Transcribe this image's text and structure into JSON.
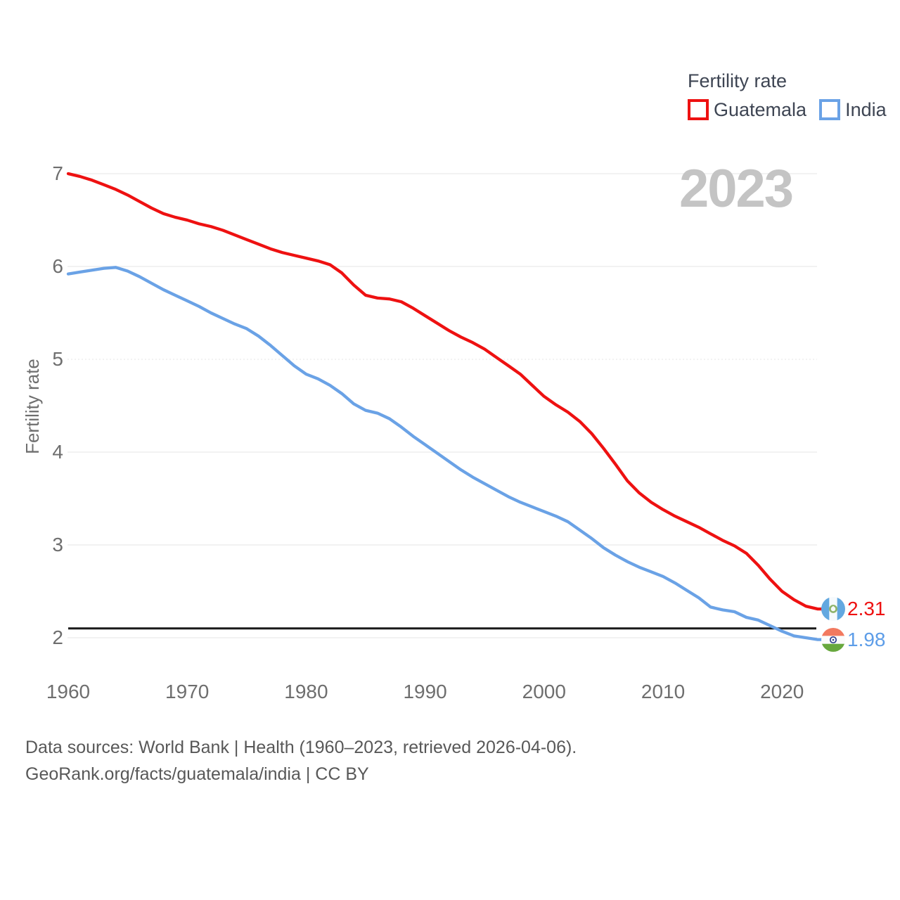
{
  "legend": {
    "title": "Fertility rate",
    "items": [
      {
        "label": "Guatemala",
        "color": "#ee1111"
      },
      {
        "label": "India",
        "color": "#6aa2e6"
      }
    ]
  },
  "watermark": "2023",
  "y_axis_title": "Fertility rate",
  "end_labels": [
    {
      "country": "Guatemala",
      "value": "2.31",
      "color": "#ee1111"
    },
    {
      "country": "India",
      "value": "1.98",
      "color": "#5d9de8"
    }
  ],
  "reference_line": {
    "value": 2.1,
    "color": "#1a1a1a"
  },
  "footer": {
    "line1": "Data sources: World Bank | Health (1960–2023, retrieved 2026-04-06).",
    "line2": "GeoRank.org/facts/guatemala/india | CC BY"
  },
  "chart_data": {
    "type": "line",
    "title": "Fertility rate",
    "xlabel": "",
    "ylabel": "Fertility rate",
    "xlim": [
      1960,
      2023
    ],
    "ylim": [
      1.9,
      7.1
    ],
    "x_ticks": [
      1960,
      1970,
      1980,
      1990,
      2000,
      2010,
      2020
    ],
    "y_ticks": [
      2,
      3,
      4,
      5,
      6,
      7
    ],
    "grid": true,
    "legend_position": "top-right",
    "annotations": [
      "2023 year watermark top-right",
      "black replacement-level line at 2.1"
    ],
    "x": [
      1960,
      1961,
      1962,
      1963,
      1964,
      1965,
      1966,
      1967,
      1968,
      1969,
      1970,
      1971,
      1972,
      1973,
      1974,
      1975,
      1976,
      1977,
      1978,
      1979,
      1980,
      1981,
      1982,
      1983,
      1984,
      1985,
      1986,
      1987,
      1988,
      1989,
      1990,
      1991,
      1992,
      1993,
      1994,
      1995,
      1996,
      1997,
      1998,
      1999,
      2000,
      2001,
      2002,
      2003,
      2004,
      2005,
      2006,
      2007,
      2008,
      2009,
      2010,
      2011,
      2012,
      2013,
      2014,
      2015,
      2016,
      2017,
      2018,
      2019,
      2020,
      2021,
      2022,
      2023
    ],
    "series": [
      {
        "name": "Guatemala",
        "color": "#ee1111",
        "end_label": "2.31",
        "values": [
          7.0,
          6.97,
          6.93,
          6.88,
          6.83,
          6.77,
          6.7,
          6.63,
          6.57,
          6.53,
          6.5,
          6.46,
          6.43,
          6.39,
          6.34,
          6.29,
          6.24,
          6.19,
          6.15,
          6.12,
          6.09,
          6.06,
          6.02,
          5.93,
          5.8,
          5.69,
          5.66,
          5.65,
          5.62,
          5.55,
          5.47,
          5.39,
          5.31,
          5.24,
          5.18,
          5.11,
          5.02,
          4.93,
          4.84,
          4.72,
          4.6,
          4.51,
          4.43,
          4.33,
          4.2,
          4.04,
          3.87,
          3.69,
          3.56,
          3.46,
          3.38,
          3.31,
          3.25,
          3.19,
          3.12,
          3.05,
          2.99,
          2.91,
          2.78,
          2.63,
          2.5,
          2.41,
          2.34,
          2.31
        ]
      },
      {
        "name": "India",
        "color": "#6aa2e6",
        "end_label": "1.98",
        "values": [
          5.92,
          5.94,
          5.96,
          5.98,
          5.99,
          5.95,
          5.89,
          5.82,
          5.75,
          5.69,
          5.63,
          5.57,
          5.5,
          5.44,
          5.38,
          5.33,
          5.25,
          5.15,
          5.04,
          4.93,
          4.84,
          4.79,
          4.72,
          4.63,
          4.52,
          4.45,
          4.42,
          4.36,
          4.27,
          4.17,
          4.08,
          3.99,
          3.9,
          3.81,
          3.73,
          3.66,
          3.59,
          3.52,
          3.46,
          3.41,
          3.36,
          3.31,
          3.25,
          3.16,
          3.07,
          2.97,
          2.89,
          2.82,
          2.76,
          2.71,
          2.66,
          2.59,
          2.51,
          2.43,
          2.33,
          2.3,
          2.28,
          2.22,
          2.19,
          2.13,
          2.07,
          2.02,
          2.0,
          1.98
        ]
      }
    ]
  }
}
